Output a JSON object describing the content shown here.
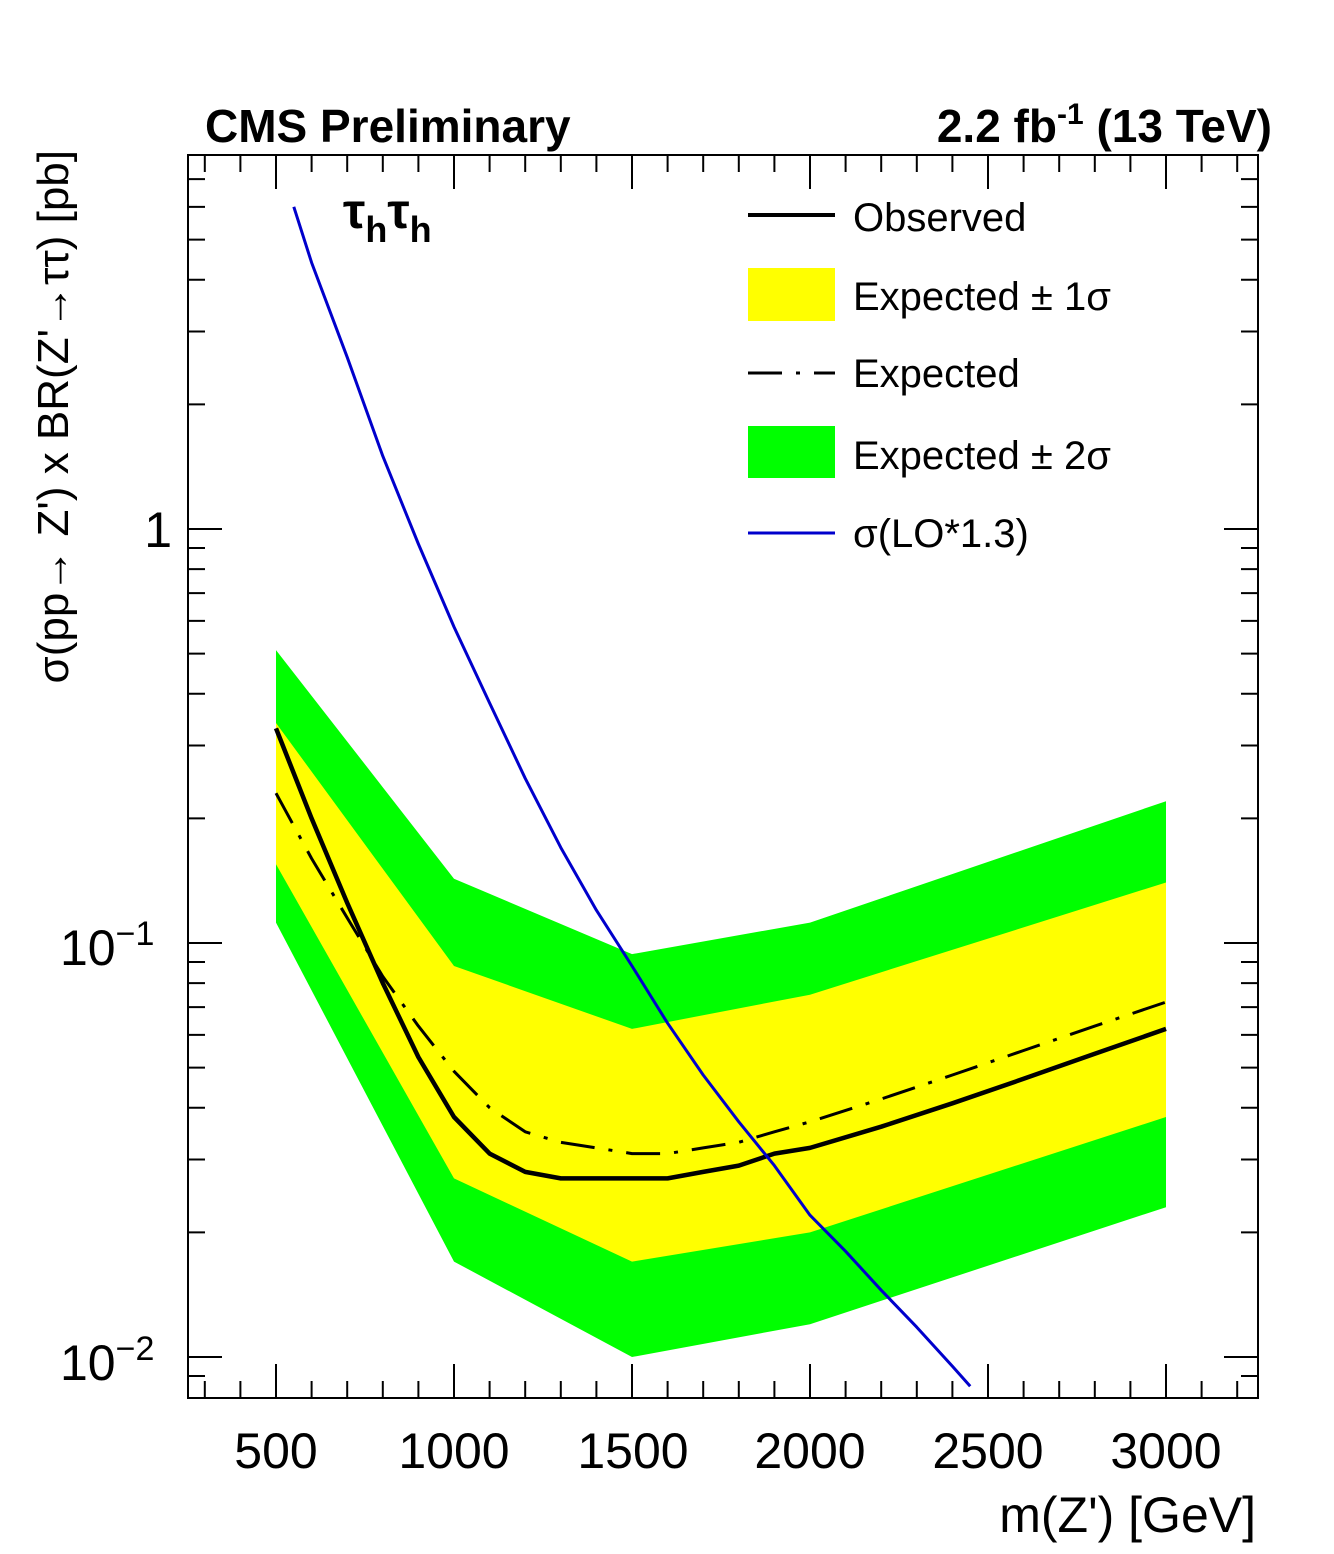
{
  "header": {
    "left_label": "CMS Preliminary",
    "right_lumi": "2.2 fb",
    "right_lumi_exp": "-1",
    "right_energy": "(13 TeV)"
  },
  "channel": {
    "tau": "τ",
    "sub": "h"
  },
  "axes": {
    "ylabel": "σ(pp→ Z') x BR(Z'→ττ) [pb]",
    "xlabel": "m(Z') [GeV]",
    "x_ticks": [
      "500",
      "1000",
      "1500",
      "2000",
      "2500",
      "3000"
    ],
    "y_ticks": [
      {
        "base": "1",
        "exp": ""
      },
      {
        "base": "10",
        "exp": "−1"
      },
      {
        "base": "10",
        "exp": "−2"
      }
    ]
  },
  "legend": {
    "observed": "Observed",
    "band1": "Expected ± 1σ",
    "expected": "Expected",
    "band2": "Expected ± 2σ",
    "theory": "σ(LO*1.3)"
  },
  "colors": {
    "band1": "#ffff00",
    "band2": "#00ff00",
    "observed": "#000000",
    "theory": "#0000cc"
  },
  "chart_data": {
    "type": "line",
    "title": "",
    "xlabel": "m(Z') [GeV]",
    "ylabel": "σ(pp→ Z') x BR(Z'→ττ) [pb]",
    "xlim": [
      250,
      3250
    ],
    "ylim": [
      0.0085,
      6.0
    ],
    "y_log": true,
    "grid": false,
    "legend_position": "top-right",
    "x": [
      500,
      1000,
      1500,
      2000,
      3000
    ],
    "series": [
      {
        "name": "Observed",
        "x": [
          500,
          600,
          700,
          800,
          900,
          1000,
          1100,
          1200,
          1300,
          1400,
          1500,
          1600,
          1700,
          1800,
          1900,
          2000,
          2200,
          2400,
          2600,
          2800,
          3000
        ],
        "values": [
          0.33,
          0.2,
          0.125,
          0.08,
          0.053,
          0.038,
          0.031,
          0.028,
          0.027,
          0.027,
          0.027,
          0.027,
          0.028,
          0.029,
          0.031,
          0.032,
          0.036,
          0.041,
          0.047,
          0.054,
          0.062
        ]
      },
      {
        "name": "Expected",
        "x": [
          500,
          600,
          700,
          800,
          900,
          1000,
          1100,
          1200,
          1300,
          1400,
          1500,
          1600,
          1700,
          1800,
          1900,
          2000,
          2200,
          2400,
          2600,
          2800,
          3000
        ],
        "values": [
          0.23,
          0.16,
          0.115,
          0.083,
          0.063,
          0.049,
          0.04,
          0.035,
          0.033,
          0.032,
          0.031,
          0.031,
          0.032,
          0.033,
          0.035,
          0.037,
          0.042,
          0.048,
          0.055,
          0.063,
          0.072
        ]
      },
      {
        "name": "Expected ± 1σ",
        "x": [
          500,
          1000,
          1500,
          2000,
          3000
        ],
        "low": [
          0.155,
          0.027,
          0.017,
          0.02,
          0.038
        ],
        "high": [
          0.34,
          0.088,
          0.062,
          0.075,
          0.14
        ]
      },
      {
        "name": "Expected ± 2σ",
        "x": [
          500,
          1000,
          1500,
          2000,
          3000
        ],
        "low": [
          0.112,
          0.017,
          0.01,
          0.012,
          0.023
        ],
        "high": [
          0.51,
          0.143,
          0.094,
          0.112,
          0.22
        ]
      },
      {
        "name": "σ(LO*1.3)",
        "x": [
          550,
          600,
          700,
          800,
          900,
          1000,
          1100,
          1200,
          1300,
          1400,
          1500,
          1600,
          1700,
          1800,
          1900,
          2000,
          2100,
          2200,
          2300,
          2400,
          2450
        ],
        "values": [
          6.0,
          4.4,
          2.6,
          1.5,
          0.92,
          0.58,
          0.38,
          0.25,
          0.17,
          0.12,
          0.088,
          0.064,
          0.048,
          0.037,
          0.029,
          0.022,
          0.018,
          0.0145,
          0.0118,
          0.0095,
          0.0085
        ]
      }
    ]
  }
}
